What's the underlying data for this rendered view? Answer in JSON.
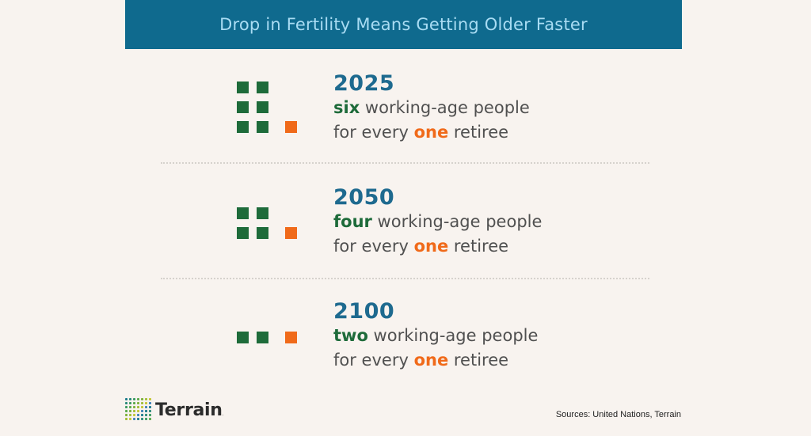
{
  "header": {
    "title": "Drop in Fertility Means Getting Older Faster"
  },
  "rows": [
    {
      "year": "2025",
      "count_word": "six",
      "rest1": " working-age people",
      "prefix2": "for every ",
      "one_word": "one",
      "suffix2": " retiree",
      "working_age": 6,
      "retirees": 1
    },
    {
      "year": "2050",
      "count_word": "four",
      "rest1": " working-age people",
      "prefix2": "for every ",
      "one_word": "one",
      "suffix2": " retiree",
      "working_age": 4,
      "retirees": 1
    },
    {
      "year": "2100",
      "count_word": "two",
      "rest1": " working-age people",
      "prefix2": "for every ",
      "one_word": "one",
      "suffix2": " retiree",
      "working_age": 2,
      "retirees": 1
    }
  ],
  "colors": {
    "banner_bg": "#0f6a8e",
    "banner_text": "#a9dcf3",
    "working_age": "#1e6b3a",
    "retiree": "#f06a1a",
    "year": "#1e6a8f"
  },
  "logo": {
    "name": "Terrain",
    "icon": "dot-grid-logo-icon"
  },
  "footer": {
    "sources": "Sources: United Nations, Terrain"
  }
}
